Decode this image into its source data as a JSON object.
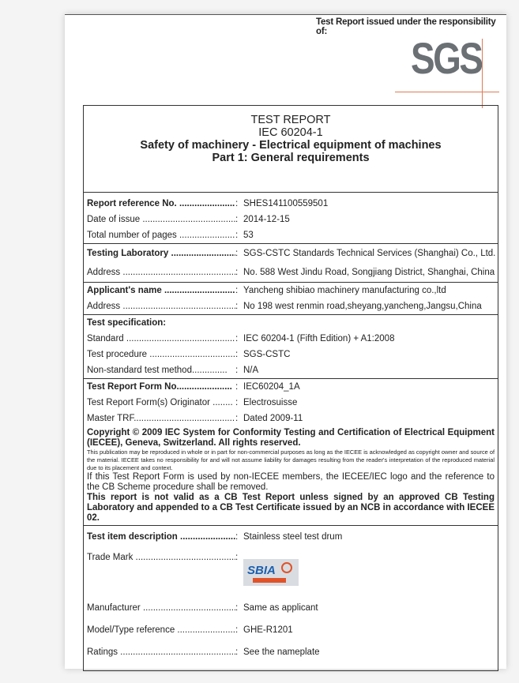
{
  "header": {
    "issued_by": "Test Report issued under the responsibility of:",
    "logo_text": "SGS"
  },
  "title": {
    "line1": "TEST REPORT",
    "line2": "IEC 60204-1",
    "line3": "Safety of machinery - Electrical equipment of machines",
    "line4": "Part 1: General requirements"
  },
  "fields": [
    {
      "label": "Report reference No. ......................",
      "value": "SHES141100559501",
      "bold": true
    },
    {
      "label": "Date of issue ......................................",
      "value": "2014-12-15"
    },
    {
      "label": "Total number of pages ......................",
      "value": "53"
    },
    {
      "label": "Testing Laboratory ..........................",
      "value": "SGS-CSTC Standards Technical Services (Shanghai) Co., Ltd.",
      "bold": true
    },
    {
      "label": "Address ...................................................",
      "value": "No. 588 West Jindu Road, Songjiang District, Shanghai, China"
    },
    {
      "label": "Applicant's name ..............................",
      "value": "Yancheng shibiao machinery manufacturing co.,ltd",
      "bold": true
    },
    {
      "label": "Address ...................................................",
      "value": "No 198 west renmin road,sheyang,yancheng,Jangsu,China"
    }
  ],
  "test_spec": {
    "heading": "Test specification:",
    "fields": [
      {
        "label": "Standard ................................................",
        "value": "IEC 60204-1 (Fifth Edition) + A1:2008"
      },
      {
        "label": "Test procedure ....................................",
        "value": "SGS-CSTC"
      },
      {
        "label": "Non-standard test method..............",
        "value": "N/A"
      }
    ]
  },
  "trf": [
    {
      "label": "Test Report Form No......................",
      "value": "IEC60204_1A",
      "bold": true
    },
    {
      "label": "Test Report Form(s) Originator ........",
      "value": "Electrosuisse"
    },
    {
      "label": "Master TRF.........................................",
      "value": "Dated 2009-11"
    }
  ],
  "copyright": {
    "bold": "Copyright © 2009 IEC System for Conformity Testing and Certification of Electrical Equipment (IECEE), Geneva, Switzerland. All rights reserved.",
    "small": "This publication may be reproduced in whole or in part for non-commercial purposes as long as the IECEE is acknowledged as copyright owner and source of the material. IECEE takes no responsibility for and will not assume liability for damages resulting from the reader's interpretation of the reproduced material due to its placement and context.",
    "notice": "If this Test Report Form is used by non-IECEE members, the IECEE/IEC logo and the reference to the CB Scheme procedure shall be removed.",
    "validity": "This report is not valid as a CB Test Report unless signed by an approved CB Testing Laboratory and appended to a CB Test Certificate issued by an NCB in accordance with IECEE 02."
  },
  "item": [
    {
      "label": "Test item description ......................",
      "value": "Stainless steel test drum",
      "bold": true
    },
    {
      "label": "Trade Mark ..........................................",
      "logo_text": "SBIA"
    },
    {
      "label": "Manufacturer .......................................",
      "value": "Same as applicant"
    },
    {
      "label": "Model/Type reference .......................",
      "value": "GHE-R1201"
    },
    {
      "label": "Ratings ................................................",
      "value": "See the nameplate"
    }
  ],
  "colon": ":"
}
